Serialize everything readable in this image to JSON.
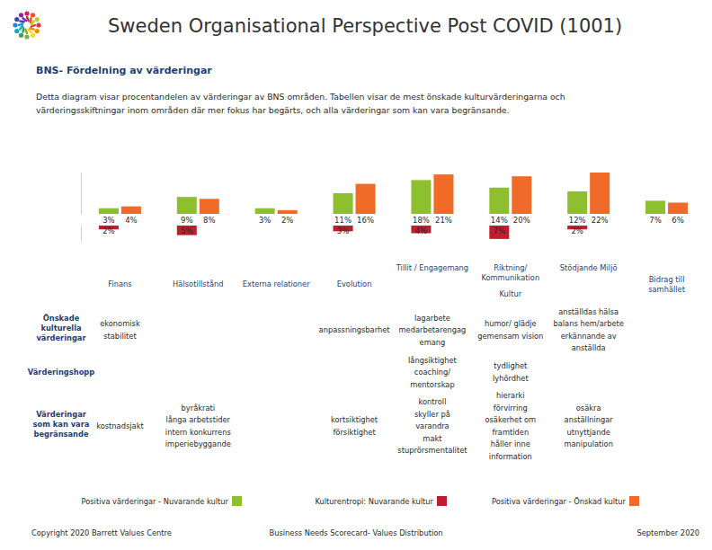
{
  "header": {
    "title": "Sweden Organisational Perspective Post COVID (1001)",
    "description": [
      "Detta diagram visar procentandelen av värderingar av BNS områden. Tabellen visar de mest önskade kulturvärderingarna och",
      "värderingsskiftningar inom områden där mer fokus har begärts, och alla värderingar som kan vara begränsande."
    ]
  },
  "chart_data": {
    "type": "bar",
    "title": "BNS- Fördelning av värderingar",
    "categories": [
      "Finans",
      "Hälsotillstånd",
      "Externa relationer",
      "Evolution",
      "Tillit / Engagemang",
      "Riktning/\nKommunikation",
      "Stödjande Miljö",
      "Bidrag till\nsamhället"
    ],
    "category_groups": [
      {
        "label": "Kultur",
        "categories": [
          "Tillit / Engagemang",
          "Riktning/\nKommunikation",
          "Stödjande Miljö"
        ]
      }
    ],
    "series": [
      {
        "name": "Positiva värderingar - Nuvarande kultur",
        "color": "#8dbf2e",
        "values": [
          3,
          9,
          3,
          11,
          18,
          14,
          12,
          7
        ],
        "value_labels": [
          "3%",
          "9%",
          "3%",
          "11%",
          "18%",
          "14%",
          "12%",
          "7%"
        ]
      },
      {
        "name": "Kulturentropi: Nuvarande kultur",
        "color": "#be1e2d",
        "axis": "y2",
        "values": [
          2,
          5,
          null,
          3,
          4,
          7,
          2,
          null
        ],
        "value_labels": [
          "2%",
          "5%",
          null,
          "3%",
          "4%",
          "7%",
          "2%",
          null
        ]
      },
      {
        "name": "Positiva värderingar - Önskad kultur",
        "color": "#f06a28",
        "values": [
          4,
          8,
          2,
          16,
          21,
          20,
          22,
          6
        ],
        "value_labels": [
          "4%",
          "8%",
          "2%",
          "16%",
          "21%",
          "20%",
          "22%",
          "6%"
        ]
      }
    ],
    "ylim": [
      0,
      22
    ],
    "y2lim": [
      0,
      8
    ],
    "data_labels": true,
    "tick_labels": false,
    "legend": "bottom"
  },
  "table": {
    "row_headers": [
      [
        "Önskade",
        "kulturella",
        "värderingar"
      ],
      [
        "Värderingshopp"
      ],
      [
        "Värderingar",
        "som kan vara",
        "begränsande"
      ]
    ],
    "rows": [
      [
        [
          "ekonomisk",
          "stabilitet"
        ],
        null,
        null,
        [
          "anpassningsbarhet"
        ],
        [
          "lagarbete",
          "medarbetarengag",
          "emang"
        ],
        [
          "humor/ glädje",
          "gemensam vision"
        ],
        [
          "anställdas hälsa",
          "balans hem/arbete",
          "erkännande av",
          "anställda"
        ],
        null
      ],
      [
        null,
        null,
        null,
        null,
        [
          "långsiktighet",
          "coaching/",
          "mentorskap"
        ],
        [
          "tydlighet",
          "lyhördhet"
        ],
        null,
        null
      ],
      [
        [
          "kostnadsjakt"
        ],
        [
          "byråkrati",
          "långa arbetstider",
          "intern konkurrens",
          "imperiebyggande"
        ],
        null,
        [
          "kortsiktighet",
          "försiktighet"
        ],
        [
          "kontroll",
          "skyller på",
          "varandra",
          "makt",
          "stuprörsmentalitet"
        ],
        [
          "hierarki",
          "förvirring",
          "osäkerhet om",
          "framtiden",
          "håller inne",
          "information"
        ],
        [
          "osäkra",
          "anställningar",
          "utnyttjande",
          "manipulation"
        ],
        null
      ]
    ]
  },
  "footer": {
    "left": "Copyright 2020 Barrett Values Centre",
    "center": "Business Needs Scorecard- Values Distribution",
    "right": "September 2020"
  }
}
